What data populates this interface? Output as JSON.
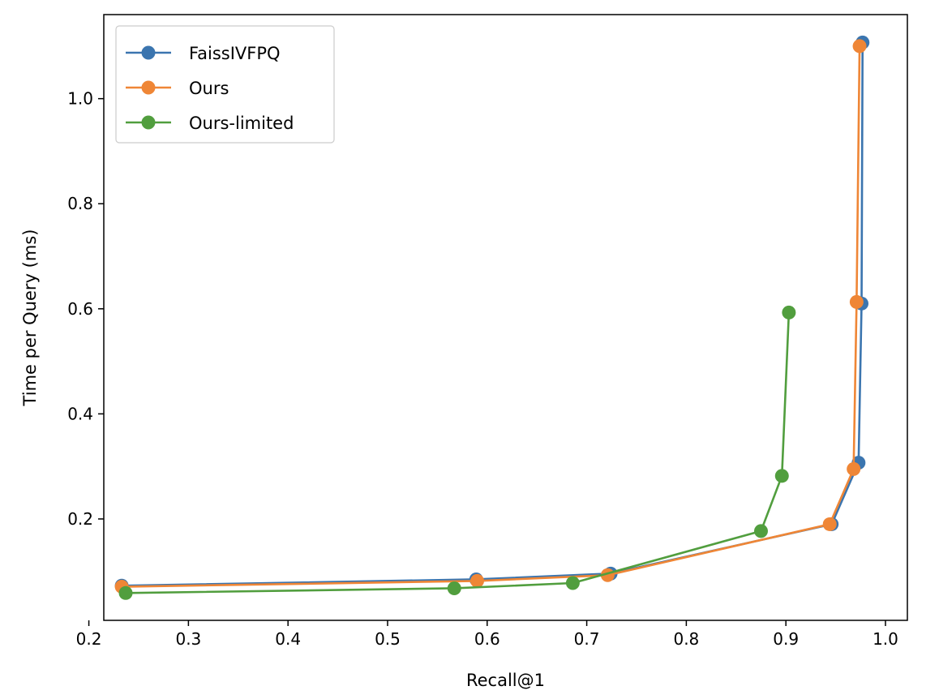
{
  "chart_data": {
    "type": "line",
    "title": "",
    "xlabel": "Recall@1",
    "ylabel": "Time per Query (ms)",
    "xlim": [
      0.215,
      1.022
    ],
    "ylim": [
      0.007,
      1.16
    ],
    "xticks": [
      0.2,
      0.3,
      0.4,
      0.5,
      0.6,
      0.7,
      0.8,
      0.9,
      1.0
    ],
    "yticks": [
      0.2,
      0.4,
      0.6,
      0.8,
      1.0
    ],
    "xtick_labels": [
      "0.2",
      "0.3",
      "0.4",
      "0.5",
      "0.6",
      "0.7",
      "0.8",
      "0.9",
      "1.0"
    ],
    "ytick_labels": [
      "0.2",
      "0.4",
      "0.6",
      "0.8",
      "1.0"
    ],
    "grid": false,
    "legend_position": "top-left",
    "series": [
      {
        "name": "FaissIVFPQ",
        "color": "#3b75af",
        "x": [
          0.233,
          0.589,
          0.724,
          0.946,
          0.973,
          0.976,
          0.977
        ],
        "y": [
          0.073,
          0.085,
          0.096,
          0.19,
          0.307,
          0.61,
          1.107
        ]
      },
      {
        "name": "Ours",
        "color": "#ef8636",
        "x": [
          0.233,
          0.59,
          0.721,
          0.944,
          0.968,
          0.971,
          0.974
        ],
        "y": [
          0.071,
          0.082,
          0.093,
          0.19,
          0.295,
          0.613,
          1.1
        ]
      },
      {
        "name": "Ours-limited",
        "color": "#519e3e",
        "x": [
          0.237,
          0.567,
          0.686,
          0.875,
          0.896,
          0.903
        ],
        "y": [
          0.059,
          0.068,
          0.078,
          0.177,
          0.282,
          0.593
        ]
      }
    ]
  }
}
